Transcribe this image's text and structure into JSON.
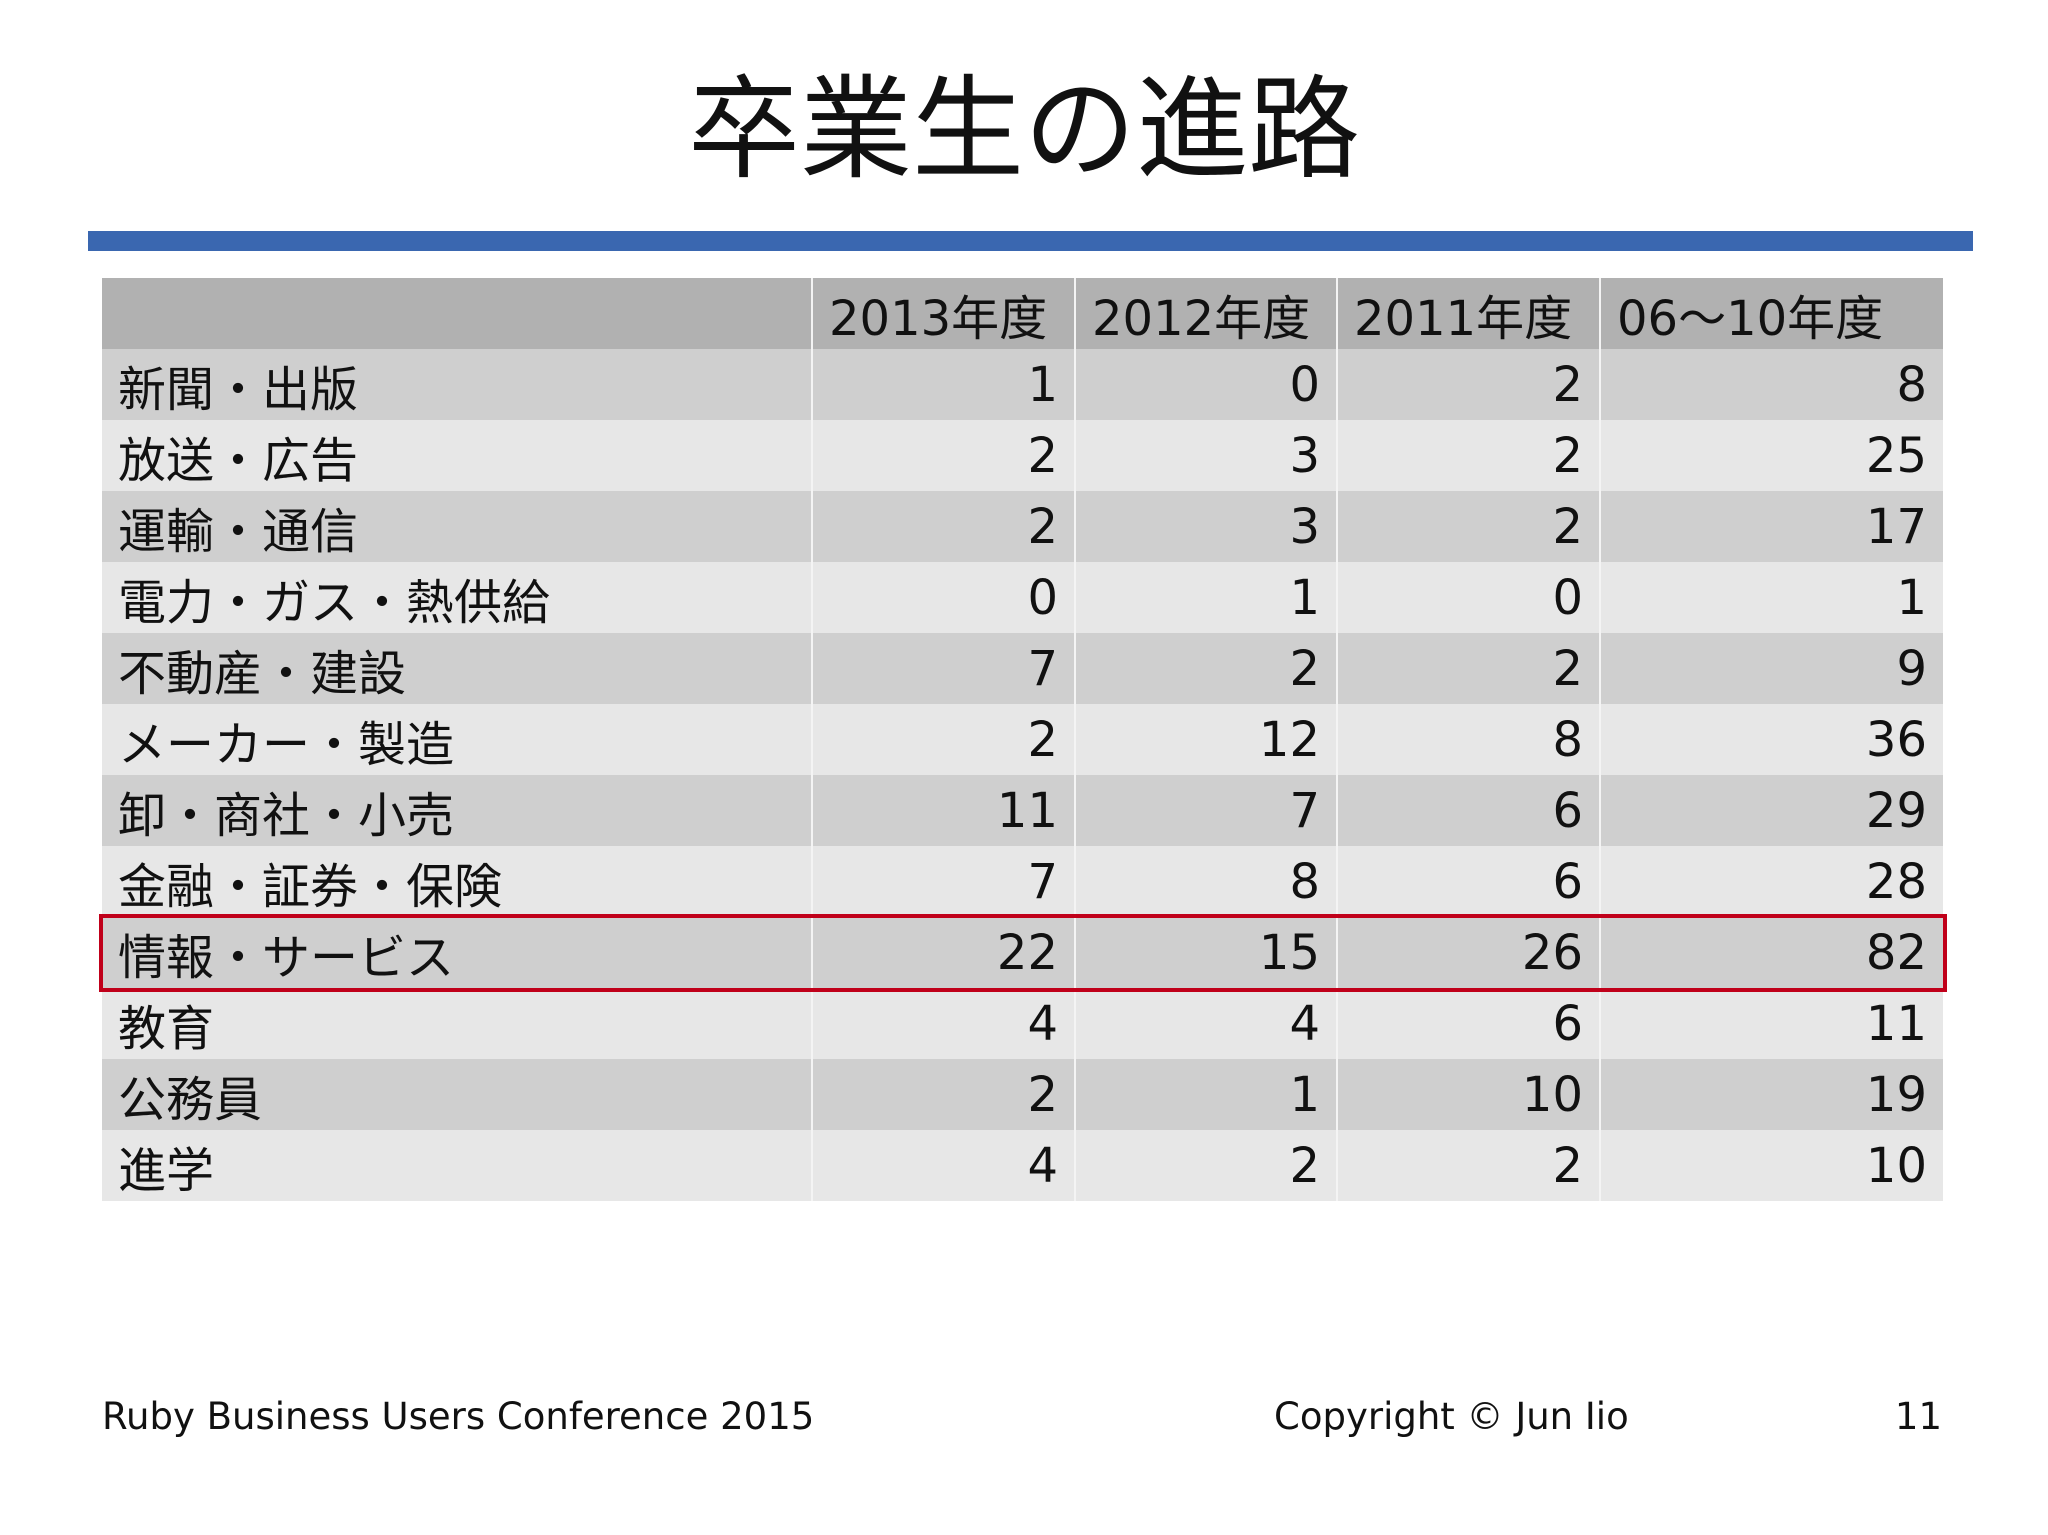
{
  "title": "卒業生の進路",
  "table": {
    "header": [
      "2013年度",
      "2012年度",
      "2011年度",
      "06〜10年度"
    ],
    "rows": [
      [
        "新聞・出版",
        1,
        0,
        2,
        8
      ],
      [
        "放送・広告",
        2,
        3,
        2,
        25
      ],
      [
        "運輸・通信",
        2,
        3,
        2,
        17
      ],
      [
        "電力・ガス・熱供給",
        0,
        1,
        0,
        1
      ],
      [
        "不動産・建設",
        7,
        2,
        2,
        9
      ],
      [
        "メーカー・製造",
        2,
        12,
        8,
        36
      ],
      [
        "卸・商社・小売",
        11,
        7,
        6,
        29
      ],
      [
        "金融・証券・保険",
        7,
        8,
        6,
        28
      ],
      [
        "情報・サービス",
        22,
        15,
        26,
        82
      ],
      [
        "教育",
        4,
        4,
        6,
        11
      ],
      [
        "公務員",
        2,
        1,
        10,
        19
      ],
      [
        "進学",
        4,
        2,
        2,
        10
      ]
    ]
  },
  "footer": {
    "event": "Ruby Business Users Conference 2015",
    "copyright": "Copyright © Jun Iio",
    "page": "11"
  }
}
